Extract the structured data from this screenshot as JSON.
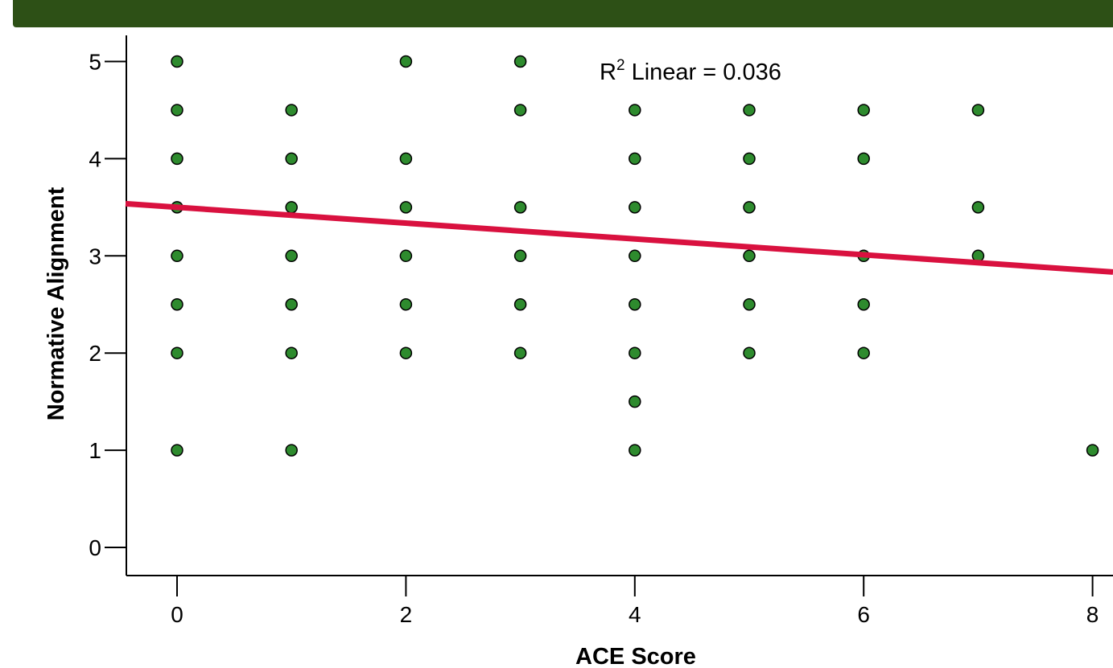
{
  "header": {
    "banner_color": "#2d5016"
  },
  "chart_data": {
    "type": "scatter",
    "xlabel": "ACE Score",
    "ylabel": "Normative Alignment",
    "xlim": [
      -0.45,
      8.2
    ],
    "ylim": [
      -0.3,
      5.3
    ],
    "x_ticks": [
      0,
      2,
      4,
      6,
      8
    ],
    "y_ticks": [
      0,
      1,
      2,
      3,
      4,
      5
    ],
    "grid": false,
    "legend": "none",
    "point_color": "#2e8b2e",
    "line_color": "#d9113f",
    "points": [
      {
        "x": 0,
        "y": 5
      },
      {
        "x": 0,
        "y": 4.5
      },
      {
        "x": 0,
        "y": 4
      },
      {
        "x": 0,
        "y": 3.5
      },
      {
        "x": 0,
        "y": 3
      },
      {
        "x": 0,
        "y": 2.5
      },
      {
        "x": 0,
        "y": 2
      },
      {
        "x": 0,
        "y": 1
      },
      {
        "x": 1,
        "y": 4.5
      },
      {
        "x": 1,
        "y": 4
      },
      {
        "x": 1,
        "y": 3.5
      },
      {
        "x": 1,
        "y": 3
      },
      {
        "x": 1,
        "y": 2.5
      },
      {
        "x": 1,
        "y": 2
      },
      {
        "x": 1,
        "y": 1
      },
      {
        "x": 2,
        "y": 5
      },
      {
        "x": 2,
        "y": 4
      },
      {
        "x": 2,
        "y": 3.5
      },
      {
        "x": 2,
        "y": 3
      },
      {
        "x": 2,
        "y": 2.5
      },
      {
        "x": 2,
        "y": 2
      },
      {
        "x": 3,
        "y": 5
      },
      {
        "x": 3,
        "y": 4.5
      },
      {
        "x": 3,
        "y": 3.5
      },
      {
        "x": 3,
        "y": 3
      },
      {
        "x": 3,
        "y": 2.5
      },
      {
        "x": 3,
        "y": 2
      },
      {
        "x": 4,
        "y": 4.5
      },
      {
        "x": 4,
        "y": 4
      },
      {
        "x": 4,
        "y": 3.5
      },
      {
        "x": 4,
        "y": 3
      },
      {
        "x": 4,
        "y": 2.5
      },
      {
        "x": 4,
        "y": 2
      },
      {
        "x": 4,
        "y": 1.5
      },
      {
        "x": 4,
        "y": 1
      },
      {
        "x": 5,
        "y": 4.5
      },
      {
        "x": 5,
        "y": 4
      },
      {
        "x": 5,
        "y": 3.5
      },
      {
        "x": 5,
        "y": 3
      },
      {
        "x": 5,
        "y": 2.5
      },
      {
        "x": 5,
        "y": 2
      },
      {
        "x": 6,
        "y": 4.5
      },
      {
        "x": 6,
        "y": 4
      },
      {
        "x": 6,
        "y": 3
      },
      {
        "x": 6,
        "y": 2.5
      },
      {
        "x": 6,
        "y": 2
      },
      {
        "x": 7,
        "y": 4.5
      },
      {
        "x": 7,
        "y": 3.5
      },
      {
        "x": 7,
        "y": 3
      },
      {
        "x": 8,
        "y": 1
      }
    ],
    "fit_line": {
      "intercept": 3.5,
      "slope": -0.0815
    },
    "annotation": {
      "prefix": "R",
      "superscript": "2",
      "text": " Linear = 0.036"
    }
  }
}
